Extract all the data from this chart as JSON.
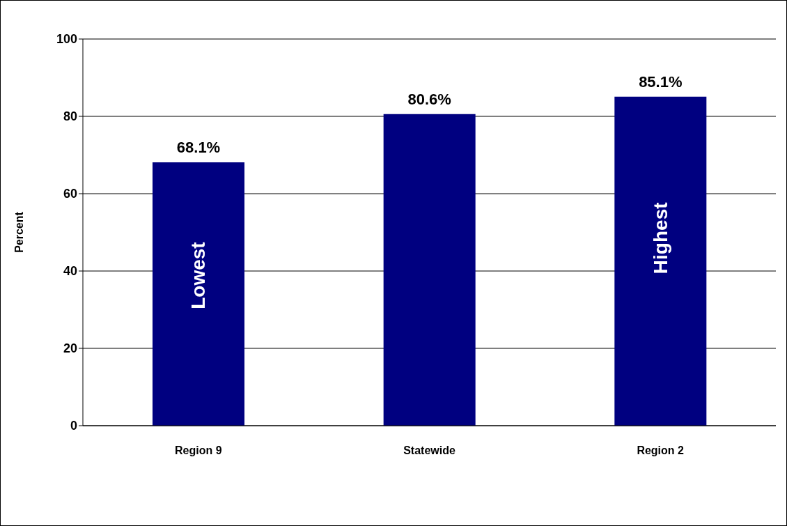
{
  "chart_data": {
    "type": "bar",
    "ylabel": "Percent",
    "categories": [
      "Region 9",
      "Statewide",
      "Region 2"
    ],
    "values": [
      68.1,
      80.6,
      85.1
    ],
    "value_labels": [
      "68.1%",
      "80.6%",
      "85.1%"
    ],
    "color": "#000080",
    "ylim": [
      0,
      100
    ],
    "yticks": [
      0,
      20,
      40,
      60,
      80,
      100
    ],
    "grid": "y",
    "legend": false,
    "annotations": [
      "Lowest",
      "Highest"
    ]
  }
}
